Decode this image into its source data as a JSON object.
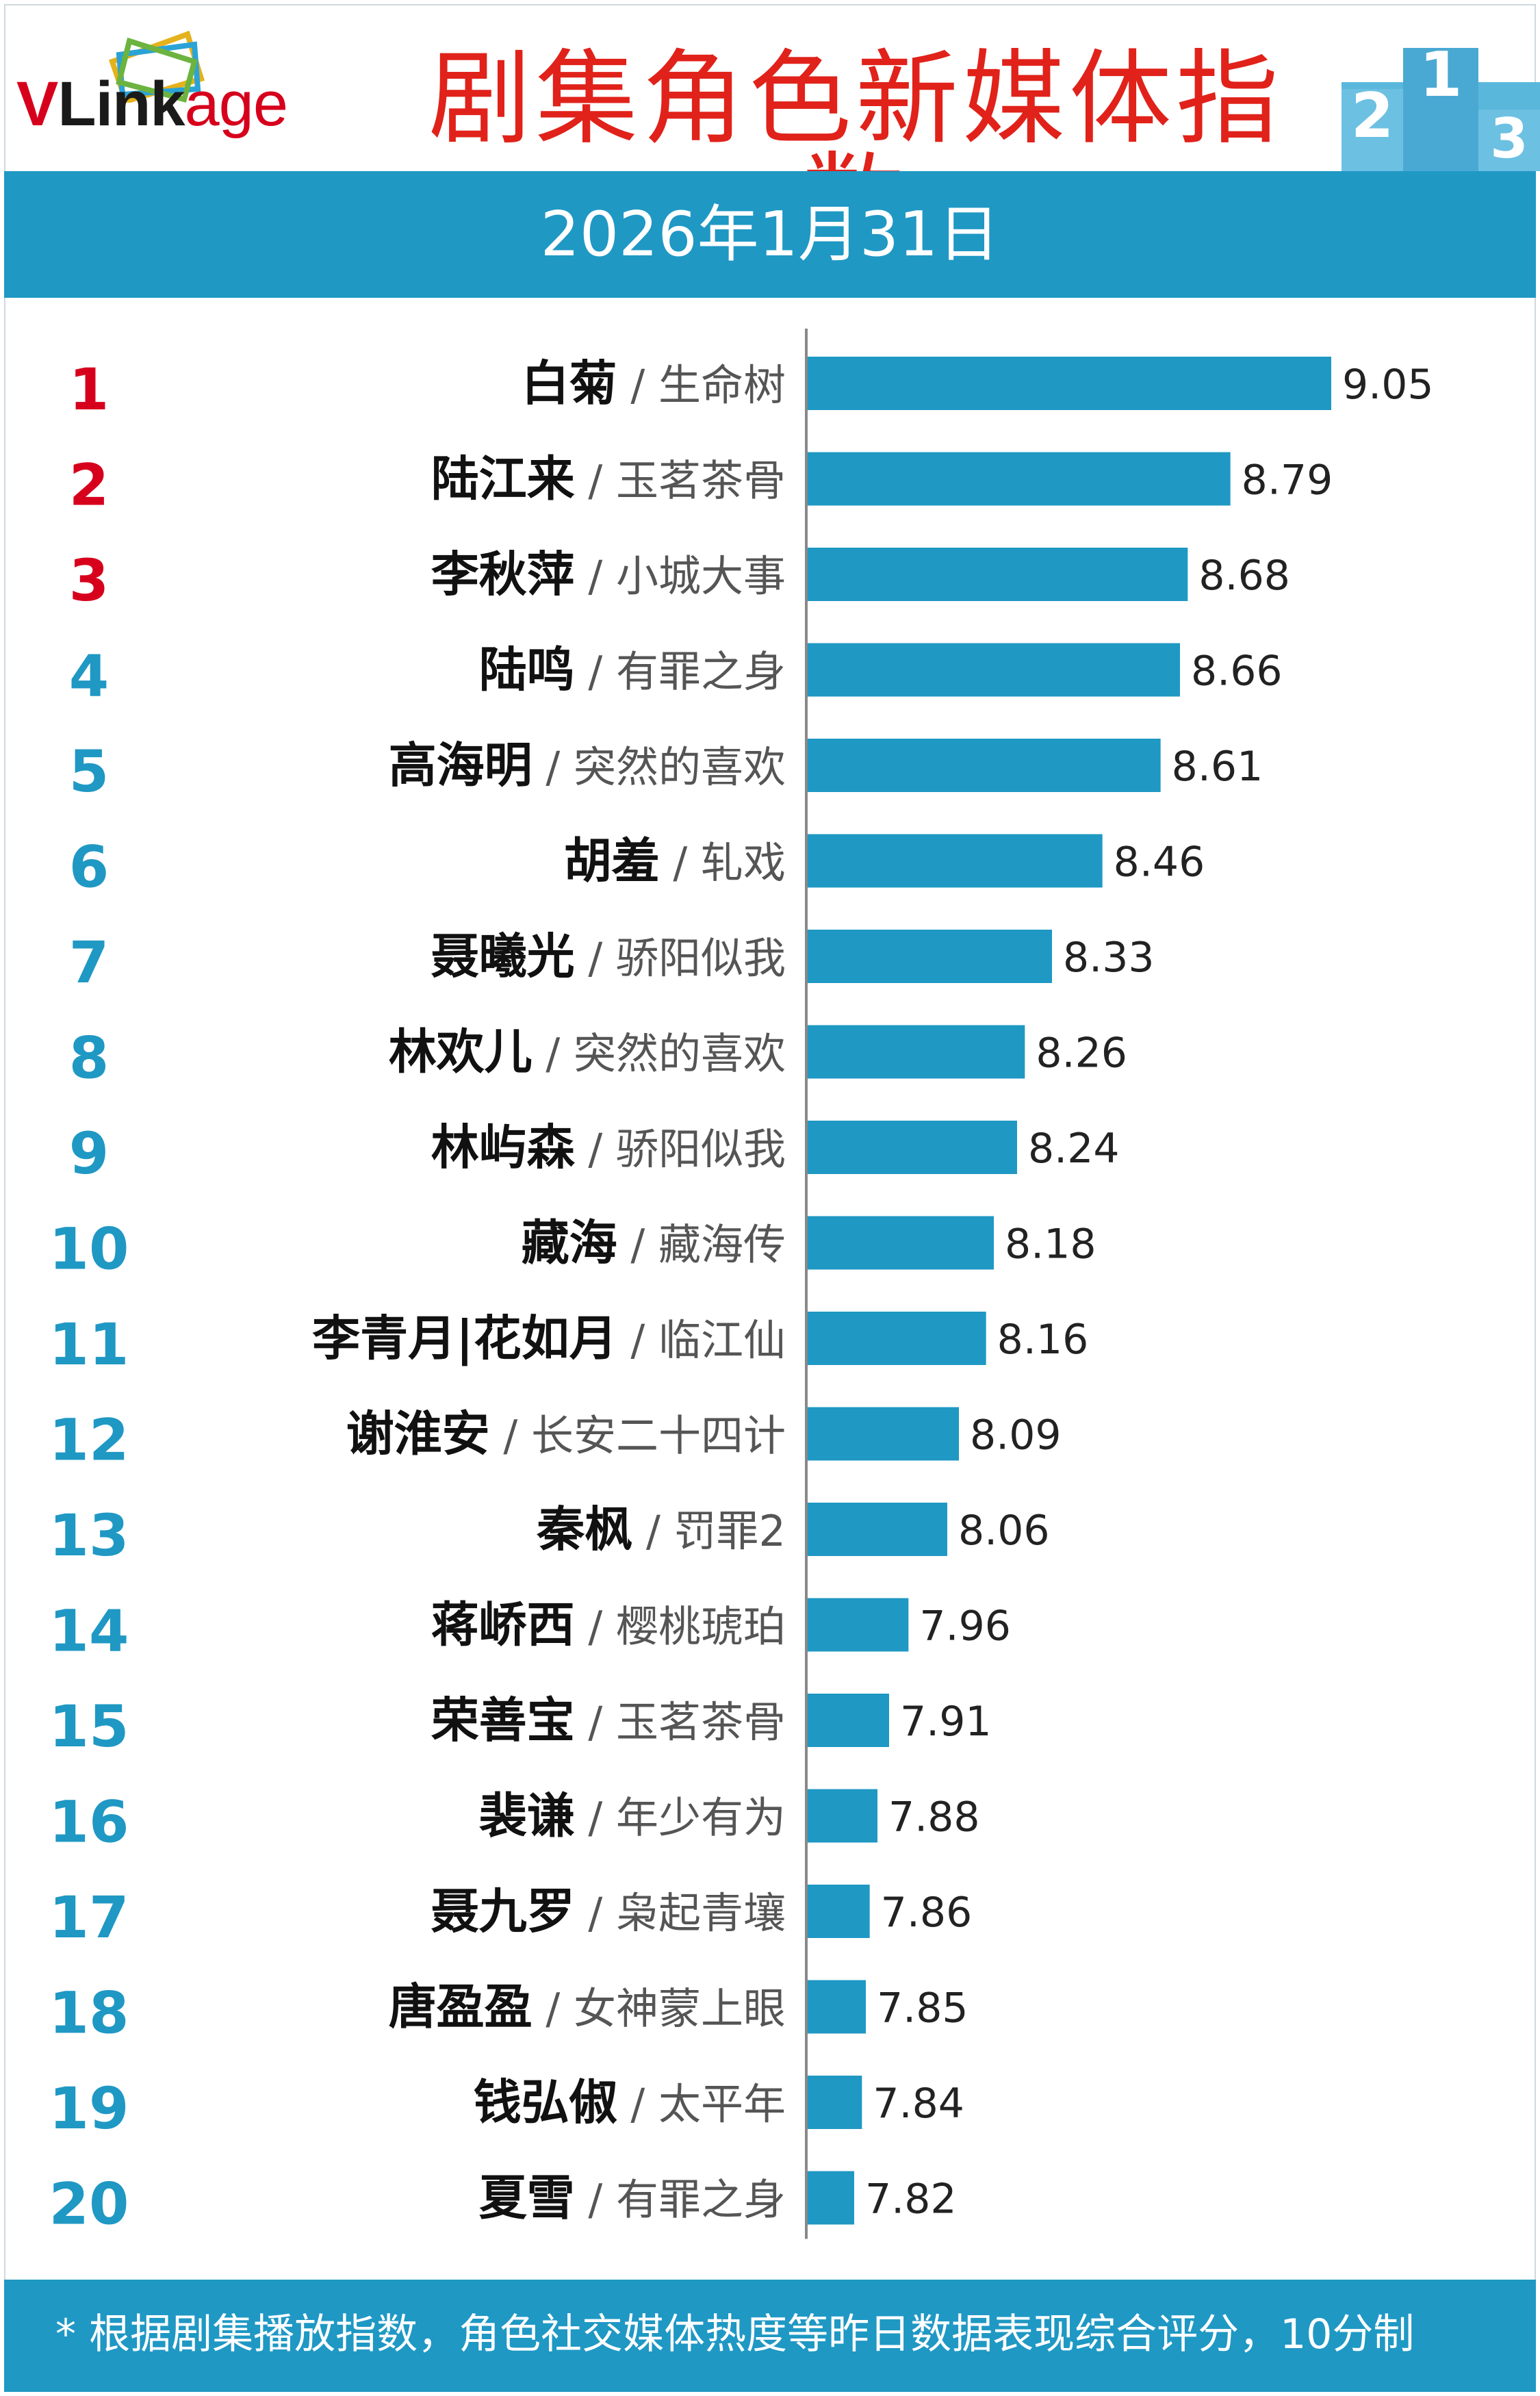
{
  "header": {
    "logo_text": "VLinkage",
    "title": "剧集角色新媒体指数",
    "date": "2026年1月31日"
  },
  "colors": {
    "accent": "#1f98c4",
    "bar": "#1f98c4",
    "top_rank": "#d6001c",
    "rank": "#1f98c4",
    "title": "#e0221a"
  },
  "chart_data": {
    "type": "bar",
    "orientation": "horizontal",
    "title": "剧集角色新媒体指数",
    "subtitle": "2026年1月31日",
    "ranks": [
      1,
      2,
      3,
      4,
      5,
      6,
      7,
      8,
      9,
      10,
      11,
      12,
      13,
      14,
      15,
      16,
      17,
      18,
      19,
      20
    ],
    "characters": [
      "白菊",
      "陆江来",
      "李秋萍",
      "陆鸣",
      "高海明",
      "胡羞",
      "聂曦光",
      "林欢儿",
      "林屿森",
      "藏海",
      "李青月|花如月",
      "谢淮安",
      "秦枫",
      "蒋峤西",
      "荣善宝",
      "裴谦",
      "聂九罗",
      "唐盈盈",
      "钱弘俶",
      "夏雪"
    ],
    "dramas": [
      "生命树",
      "玉茗茶骨",
      "小城大事",
      "有罪之身",
      "突然的喜欢",
      "轧戏",
      "骄阳似我",
      "突然的喜欢",
      "骄阳似我",
      "藏海传",
      "临江仙",
      "长安二十四计",
      "罚罪2",
      "樱桃琥珀",
      "玉茗茶骨",
      "年少有为",
      "枭起青壤",
      "女神蒙上眼",
      "太平年",
      "有罪之身"
    ],
    "values": [
      9.05,
      8.79,
      8.68,
      8.66,
      8.61,
      8.46,
      8.33,
      8.26,
      8.24,
      8.18,
      8.16,
      8.09,
      8.06,
      7.96,
      7.91,
      7.88,
      7.86,
      7.85,
      7.84,
      7.82
    ],
    "value_labels": [
      "9.05",
      "8.79",
      "8.68",
      "8.66",
      "8.61",
      "8.46",
      "8.33",
      "8.26",
      "8.24",
      "8.18",
      "8.16",
      "8.09",
      "8.06",
      "7.96",
      "7.91",
      "7.88",
      "7.86",
      "7.85",
      "7.84",
      "7.82"
    ],
    "xlim": [
      7.7,
      9.05
    ]
  },
  "footer": {
    "note": "* 根据剧集播放指数，角色社交媒体热度等昨日数据表现综合评分，10分制"
  }
}
